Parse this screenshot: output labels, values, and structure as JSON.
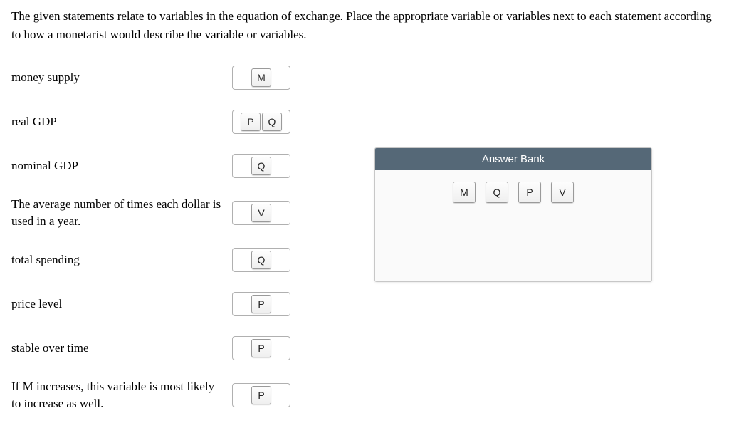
{
  "instructions": "The given statements relate to variables in the equation of exchange. Place the appropriate variable or variables next to each statement according to how a monetarist would describe the variable or variables.",
  "statements": [
    {
      "text": "money supply",
      "tiles": [
        "M"
      ],
      "tall": false
    },
    {
      "text": "real GDP",
      "tiles": [
        "P",
        "Q"
      ],
      "tall": false
    },
    {
      "text": "nominal GDP",
      "tiles": [
        "Q"
      ],
      "tall": false
    },
    {
      "text": "The average number of times each dollar is used in a year.",
      "tiles": [
        "V"
      ],
      "tall": true
    },
    {
      "text": "total spending",
      "tiles": [
        "Q"
      ],
      "tall": false
    },
    {
      "text": "price level",
      "tiles": [
        "P"
      ],
      "tall": false
    },
    {
      "text": "stable over time",
      "tiles": [
        "P"
      ],
      "tall": false
    },
    {
      "text": "If M increases, this variable is most likely to increase as well.",
      "tiles": [
        "P"
      ],
      "tall": true
    }
  ],
  "answer_bank": {
    "title": "Answer Bank",
    "tiles": [
      "M",
      "Q",
      "P",
      "V"
    ],
    "header_bg": "#556877",
    "header_text_color": "#ffffff",
    "body_bg": "#fafafa",
    "border_color": "#c7c7c7"
  },
  "tile_style": {
    "border_color": "#9a9a9a",
    "bg_top": "#fdfdfd",
    "bg_bottom": "#efefef",
    "font_family": "Arial"
  }
}
